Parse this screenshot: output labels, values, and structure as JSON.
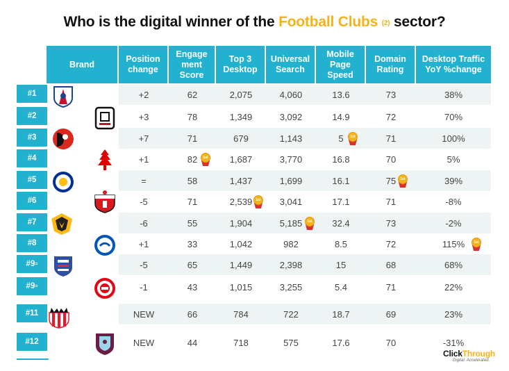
{
  "title": {
    "prefix": "Who is the digital winner of the",
    "highlight": "Football Clubs",
    "note": "(2)",
    "suffix": "sector?"
  },
  "columns": [
    {
      "key": "brand",
      "lines": [
        "Brand"
      ]
    },
    {
      "key": "position_change",
      "lines": [
        "Position",
        "change"
      ]
    },
    {
      "key": "engagement",
      "lines": [
        "Engage",
        "ment",
        "Score"
      ]
    },
    {
      "key": "top3",
      "lines": [
        "Top 3",
        "Desktop"
      ]
    },
    {
      "key": "universal",
      "lines": [
        "Universal",
        "Search"
      ]
    },
    {
      "key": "mobile",
      "lines": [
        "Mobile",
        "Page",
        "Speed"
      ]
    },
    {
      "key": "domain",
      "lines": [
        "Domain",
        "Rating"
      ]
    },
    {
      "key": "traffic",
      "lines": [
        "Desktop Traffic",
        "YoY %change"
      ]
    }
  ],
  "rows": [
    {
      "rank": "#1",
      "rank_suffix": "",
      "logo": "crystal-palace-logo",
      "change": "+2",
      "engagement": "62",
      "top3": "2,075",
      "universal": "4,060",
      "mobile": "13.6",
      "domain": "73",
      "traffic": "38%"
    },
    {
      "rank": "#2",
      "rank_suffix": "",
      "logo": "fulham-logo",
      "change": "+3",
      "engagement": "78",
      "top3": "1,349",
      "universal": "3,092",
      "mobile": "14.9",
      "domain": "72",
      "traffic": "70%"
    },
    {
      "rank": "#3",
      "rank_suffix": "",
      "logo": "bournemouth-logo",
      "change": "+7",
      "engagement": "71",
      "top3": "679",
      "universal": "1,143",
      "mobile": "5",
      "domain": "71",
      "traffic": "100%"
    },
    {
      "rank": "#4",
      "rank_suffix": "",
      "logo": "nottingham-forest-logo",
      "change": "+1",
      "engagement": "82",
      "top3": "1,687",
      "universal": "3,770",
      "mobile": "16.8",
      "domain": "70",
      "traffic": "5%"
    },
    {
      "rank": "#5",
      "rank_suffix": "",
      "logo": "leicester-logo",
      "change": "=",
      "engagement": "58",
      "top3": "1,437",
      "universal": "1,699",
      "mobile": "16.1",
      "domain": "75",
      "traffic": "39%"
    },
    {
      "rank": "#6",
      "rank_suffix": "",
      "logo": "southampton-logo",
      "change": "-5",
      "engagement": "71",
      "top3": "2,539",
      "universal": "3,041",
      "mobile": "17.1",
      "domain": "71",
      "traffic": "-8%"
    },
    {
      "rank": "#7",
      "rank_suffix": "",
      "logo": "wolves-logo",
      "change": "-6",
      "engagement": "55",
      "top3": "1,904",
      "universal": "5,185",
      "mobile": "32.4",
      "domain": "73",
      "traffic": "-2%"
    },
    {
      "rank": "#8",
      "rank_suffix": "",
      "logo": "brighton-logo",
      "change": "+1",
      "engagement": "33",
      "top3": "1,042",
      "universal": "982",
      "mobile": "8.5",
      "domain": "72",
      "traffic": "115%"
    },
    {
      "rank": "#9",
      "rank_suffix": "=",
      "logo": "ipswich-logo",
      "change": "-5",
      "engagement": "65",
      "top3": "1,449",
      "universal": "2,398",
      "mobile": "15",
      "domain": "68",
      "traffic": "68%"
    },
    {
      "rank": "#9",
      "rank_suffix": "=",
      "logo": "brentford-logo",
      "change": "-1",
      "engagement": "43",
      "top3": "1,015",
      "universal": "3,255",
      "mobile": "5.4",
      "domain": "71",
      "traffic": "22%"
    },
    {
      "rank": "#11",
      "rank_suffix": "",
      "logo": "sunderland-logo",
      "change": "NEW",
      "engagement": "66",
      "top3": "784",
      "universal": "722",
      "mobile": "18.7",
      "domain": "69",
      "traffic": "23%"
    },
    {
      "rank": "#12",
      "rank_suffix": "",
      "logo": "burnley-logo",
      "change": "NEW",
      "engagement": "44",
      "top3": "718",
      "universal": "575",
      "mobile": "17.6",
      "domain": "70",
      "traffic": "-31%"
    }
  ],
  "medal_label": "1st",
  "medals": [
    {
      "row": 3,
      "column": "engagement"
    },
    {
      "row": 2,
      "column": "mobile"
    },
    {
      "row": 4,
      "column": "domain"
    },
    {
      "row": 5,
      "column": "top3"
    },
    {
      "row": 6,
      "column": "universal"
    },
    {
      "row": 7,
      "column": "traffic"
    }
  ],
  "footer": {
    "brand_main": "Click",
    "brand_accent": "Through",
    "tagline": "Digital. Accelerated."
  },
  "colors": {
    "header_bg": "#22b2d0",
    "accent_gold": "#f6b21b",
    "stripe": "#eef3f3"
  }
}
